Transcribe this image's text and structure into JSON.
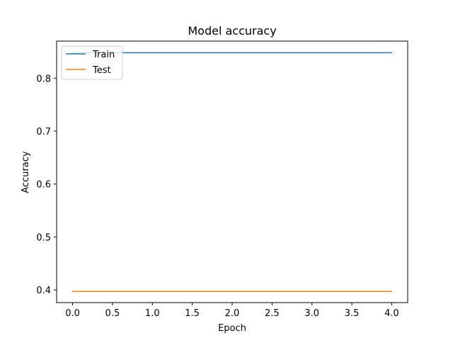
{
  "chart_data": {
    "type": "line",
    "title": "Model accuracy",
    "xlabel": "Epoch",
    "ylabel": "Accuracy",
    "xlim": [
      -0.2,
      4.2
    ],
    "ylim": [
      0.376,
      0.87
    ],
    "xticks": [
      0.0,
      0.5,
      1.0,
      1.5,
      2.0,
      2.5,
      3.0,
      3.5,
      4.0
    ],
    "xtick_labels": [
      "0.0",
      "0.5",
      "1.0",
      "1.5",
      "2.0",
      "2.5",
      "3.0",
      "3.5",
      "4.0"
    ],
    "yticks": [
      0.4,
      0.5,
      0.6,
      0.7,
      0.8
    ],
    "ytick_labels": [
      "0.4",
      "0.5",
      "0.6",
      "0.7",
      "0.8"
    ],
    "x": [
      0,
      1,
      2,
      3,
      4
    ],
    "series": [
      {
        "name": "Train",
        "color": "#1f77b4",
        "values": [
          0.848,
          0.848,
          0.848,
          0.848,
          0.848
        ]
      },
      {
        "name": "Test",
        "color": "#ff7f0e",
        "values": [
          0.397,
          0.397,
          0.397,
          0.397,
          0.397
        ]
      }
    ],
    "legend_position": "upper-left",
    "grid": false
  }
}
